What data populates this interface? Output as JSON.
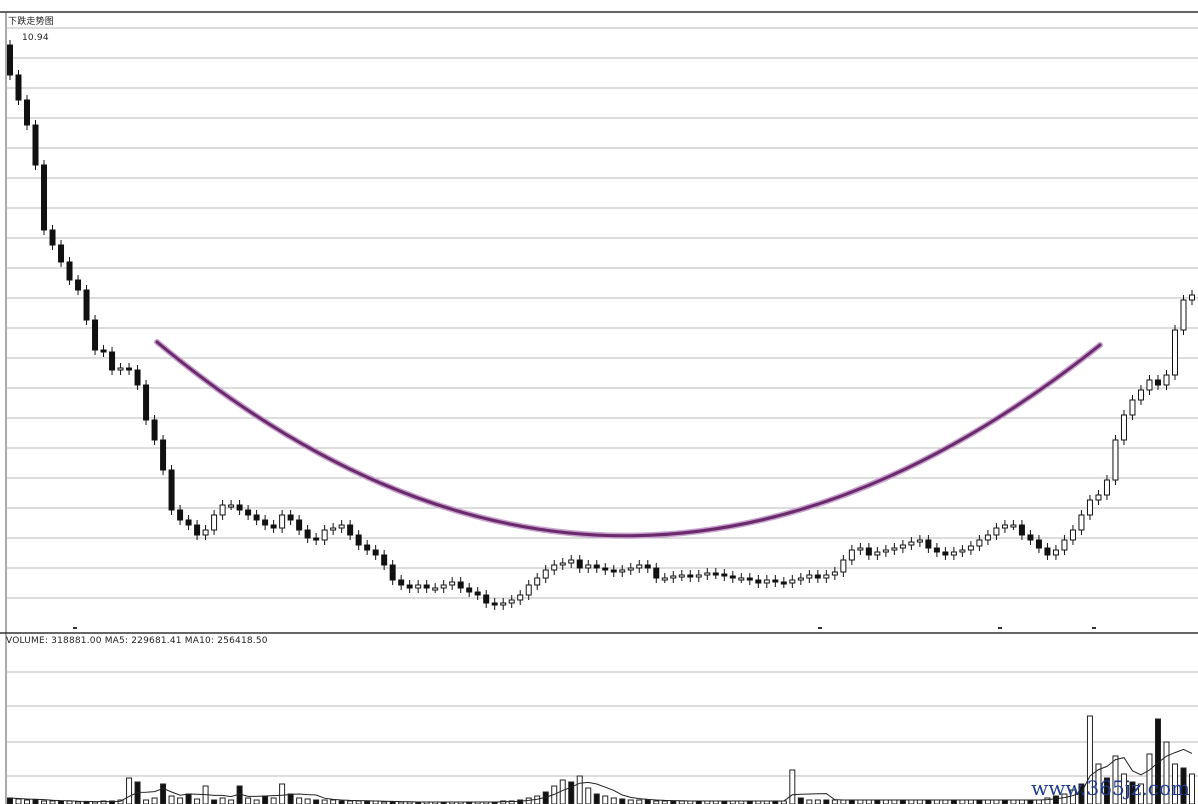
{
  "chart_data": {
    "type": "candlestick",
    "title": "下跌走势图",
    "high_label": "10.94",
    "volume_label": "VOLUME: 318881.00  MA5: 229681.41  MA10: 256418.50",
    "grid": true,
    "close": [
      10.25,
      10.0,
      9.75,
      9.35,
      8.7,
      8.55,
      8.38,
      8.2,
      8.1,
      7.8,
      7.5,
      7.48,
      7.3,
      7.32,
      7.3,
      7.15,
      6.8,
      6.6,
      6.3,
      5.9,
      5.8,
      5.75,
      5.65,
      5.7,
      5.85,
      5.95,
      5.95,
      5.9,
      5.85,
      5.8,
      5.75,
      5.72,
      5.85,
      5.8,
      5.7,
      5.62,
      5.6,
      5.7,
      5.72,
      5.75,
      5.65,
      5.55,
      5.5,
      5.45,
      5.35,
      5.2,
      5.15,
      5.12,
      5.15,
      5.12,
      5.12,
      5.15,
      5.18,
      5.12,
      5.08,
      5.05,
      4.97,
      4.95,
      4.97,
      5.0,
      5.05,
      5.15,
      5.22,
      5.3,
      5.35,
      5.37,
      5.4,
      5.32,
      5.35,
      5.32,
      5.3,
      5.28,
      5.3,
      5.32,
      5.35,
      5.32,
      5.22,
      5.22,
      5.24,
      5.25,
      5.23,
      5.25,
      5.27,
      5.26,
      5.24,
      5.22,
      5.22,
      5.2,
      5.17,
      5.2,
      5.18,
      5.17,
      5.2,
      5.22,
      5.25,
      5.22,
      5.25,
      5.28,
      5.4,
      5.5,
      5.52,
      5.45,
      5.48,
      5.5,
      5.52,
      5.55,
      5.58,
      5.6,
      5.52,
      5.48,
      5.45,
      5.48,
      5.5,
      5.54,
      5.6,
      5.65,
      5.72,
      5.75,
      5.75,
      5.65,
      5.6,
      5.52,
      5.45,
      5.5,
      5.6,
      5.7,
      5.85,
      6.0,
      6.05,
      6.2,
      6.6,
      6.85,
      7.0,
      7.1,
      7.2,
      7.15,
      7.25,
      7.7,
      8.0,
      8.05
    ],
    "volume": [
      6,
      5,
      4,
      4,
      3,
      3,
      3,
      3,
      2,
      2,
      2,
      3,
      3,
      4,
      26,
      22,
      4,
      6,
      20,
      8,
      6,
      10,
      5,
      18,
      4,
      6,
      4,
      18,
      6,
      4,
      8,
      6,
      20,
      10,
      6,
      5,
      4,
      4,
      4,
      3,
      3,
      3,
      3,
      3,
      2,
      2,
      2,
      2,
      2,
      2,
      2,
      2,
      2,
      2,
      2,
      2,
      2,
      2,
      3,
      3,
      4,
      6,
      8,
      12,
      18,
      24,
      22,
      28,
      16,
      10,
      8,
      6,
      5,
      4,
      4,
      4,
      3,
      3,
      3,
      3,
      3,
      3,
      3,
      3,
      3,
      3,
      3,
      3,
      3,
      3,
      3,
      3,
      34,
      6,
      4,
      4,
      4,
      4,
      4,
      4,
      4,
      4,
      4,
      4,
      4,
      4,
      4,
      4,
      4,
      4,
      4,
      4,
      4,
      4,
      4,
      4,
      4,
      4,
      4,
      4,
      4,
      4,
      6,
      8,
      10,
      14,
      20,
      88,
      40,
      26,
      48,
      30,
      22,
      20,
      50,
      85,
      62,
      40,
      36,
      30
    ],
    "arc_color": "#6b2a6b",
    "watermark": "www.365jz.com"
  }
}
